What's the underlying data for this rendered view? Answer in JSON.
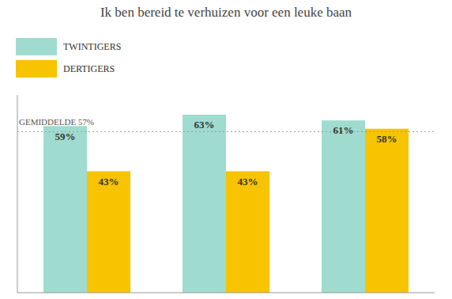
{
  "chart_data": {
    "type": "bar",
    "title": "Ik ben bereid te verhuizen voor een leuke baan",
    "categories": [
      null,
      null,
      null
    ],
    "series": [
      {
        "name": "TWINTIGERS",
        "color": "#9fdccf",
        "values": [
          59,
          63,
          61
        ],
        "value_labels": [
          "59%",
          "63%",
          "61%"
        ]
      },
      {
        "name": "DERTIGERS",
        "color": "#f8c300",
        "values": [
          43,
          43,
          58
        ],
        "value_labels": [
          "43%",
          "43%",
          "58%"
        ]
      }
    ],
    "ylim": [
      0,
      70
    ],
    "tick_labels": false,
    "data_labels": true,
    "legend": "upper left",
    "annotations": [
      {
        "text": "GEMIDDELDE 57%",
        "y": 57
      }
    ]
  }
}
